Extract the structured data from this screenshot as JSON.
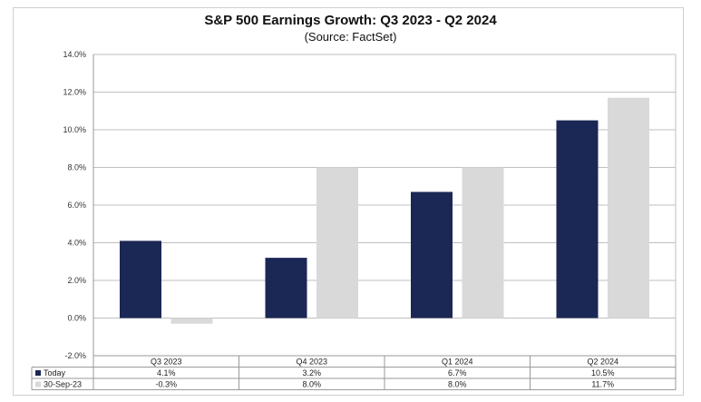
{
  "title": "S&P 500 Earnings Growth: Q3 2023 - Q2 2024",
  "subtitle": "(Source: FactSet)",
  "colors": {
    "series1": "#1b2754",
    "series2": "#d9d9d9",
    "grid": "#bfbfbf"
  },
  "chart_data": {
    "type": "bar",
    "title": "S&P 500 Earnings Growth: Q3 2023 - Q2 2024",
    "subtitle": "(Source: FactSet)",
    "categories": [
      "Q3 2023",
      "Q4 2023",
      "Q1 2024",
      "Q2 2024"
    ],
    "series": [
      {
        "name": "Today",
        "values": [
          4.1,
          3.2,
          6.7,
          10.5
        ],
        "labels": [
          "4.1%",
          "3.2%",
          "6.7%",
          "10.5%"
        ]
      },
      {
        "name": "30-Sep-23",
        "values": [
          -0.3,
          8.0,
          8.0,
          11.7
        ],
        "labels": [
          "-0.3%",
          "8.0%",
          "8.0%",
          "11.7%"
        ]
      }
    ],
    "ylim": [
      -2,
      14
    ],
    "yticks": [
      -2,
      0,
      2,
      4,
      6,
      8,
      10,
      12,
      14
    ],
    "ytick_labels": [
      "-2.0%",
      "0.0%",
      "2.0%",
      "4.0%",
      "6.0%",
      "8.0%",
      "10.0%",
      "12.0%",
      "14.0%"
    ],
    "grid": true,
    "legend": "data-table"
  }
}
